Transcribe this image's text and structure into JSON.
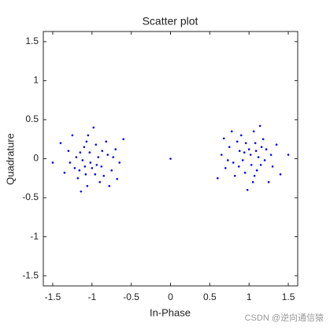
{
  "chart_data": {
    "type": "scatter",
    "title": "Scatter plot",
    "x_label": "In-Phase",
    "y_label": "Quadrature",
    "watermark": "CSDN @逆向通信猿",
    "color": "#0000ff",
    "x": [
      1.02,
      0.88,
      1.15,
      0.8,
      1.08,
      0.95,
      1.22,
      0.75,
      1.3,
      0.9,
      1.05,
      1.12,
      0.92,
      1.18,
      0.82,
      1.28,
      0.7,
      1.1,
      0.85,
      1.0,
      1.35,
      0.65,
      1.06,
      0.98,
      1.4,
      0.6,
      1.25,
      0.78,
      1.14,
      1.5,
      0.68,
      1.03,
      0.94,
      1.09,
      0.87,
      1.2,
      0.73,
      1.16,
      0.96,
      1.07,
      -1.02,
      -0.88,
      -1.15,
      -0.8,
      -1.08,
      -0.95,
      -1.22,
      -0.75,
      -1.3,
      -0.9,
      -1.05,
      -1.12,
      -0.92,
      -1.18,
      -0.82,
      -1.28,
      -0.7,
      -1.1,
      -0.85,
      -1.0,
      -1.35,
      -0.65,
      -1.06,
      -0.98,
      -1.4,
      -0.6,
      -1.25,
      -0.78,
      -1.14,
      -1.5,
      -0.68,
      -1.03,
      -0.94,
      -1.09,
      -0.87,
      -1.2,
      -0.73,
      -1.16,
      -0.96,
      -1.07,
      0
    ],
    "values": [
      0.05,
      0.1,
      -0.08,
      -0.05,
      0.2,
      -0.18,
      0.12,
      0.15,
      -0.1,
      0.3,
      -0.3,
      0.02,
      -0.02,
      0.25,
      -0.22,
      0.05,
      -0.12,
      -0.15,
      0.22,
      0.12,
      0.18,
      0.05,
      0.35,
      -0.4,
      -0.2,
      -0.25,
      -0.3,
      0.35,
      0.42,
      0.05,
      0.26,
      -0.08,
      0.08,
      0.1,
      -0.1,
      -0.02,
      -0.02,
      0.15,
      0.2,
      -0.22,
      -0.05,
      -0.1,
      0.08,
      0.05,
      -0.2,
      0.18,
      -0.12,
      -0.15,
      0.1,
      -0.3,
      0.3,
      -0.02,
      0.02,
      -0.25,
      0.22,
      -0.05,
      0.12,
      0.15,
      -0.22,
      -0.12,
      -0.18,
      -0.05,
      -0.35,
      0.4,
      0.2,
      0.25,
      0.3,
      -0.35,
      -0.42,
      -0.05,
      -0.26,
      0.08,
      -0.08,
      -0.1,
      0.1,
      0.02,
      0.02,
      -0.15,
      -0.2,
      0.22,
      0
    ],
    "xlim": [
      -1.62,
      1.62
    ],
    "ylim": [
      -1.63,
      1.63
    ],
    "xticks": [
      -1.5,
      -1,
      -0.5,
      0,
      0.5,
      1,
      1.5
    ],
    "yticks": [
      -1.5,
      -1,
      -0.5,
      0,
      0.5,
      1,
      1.5
    ],
    "grid": false
  }
}
